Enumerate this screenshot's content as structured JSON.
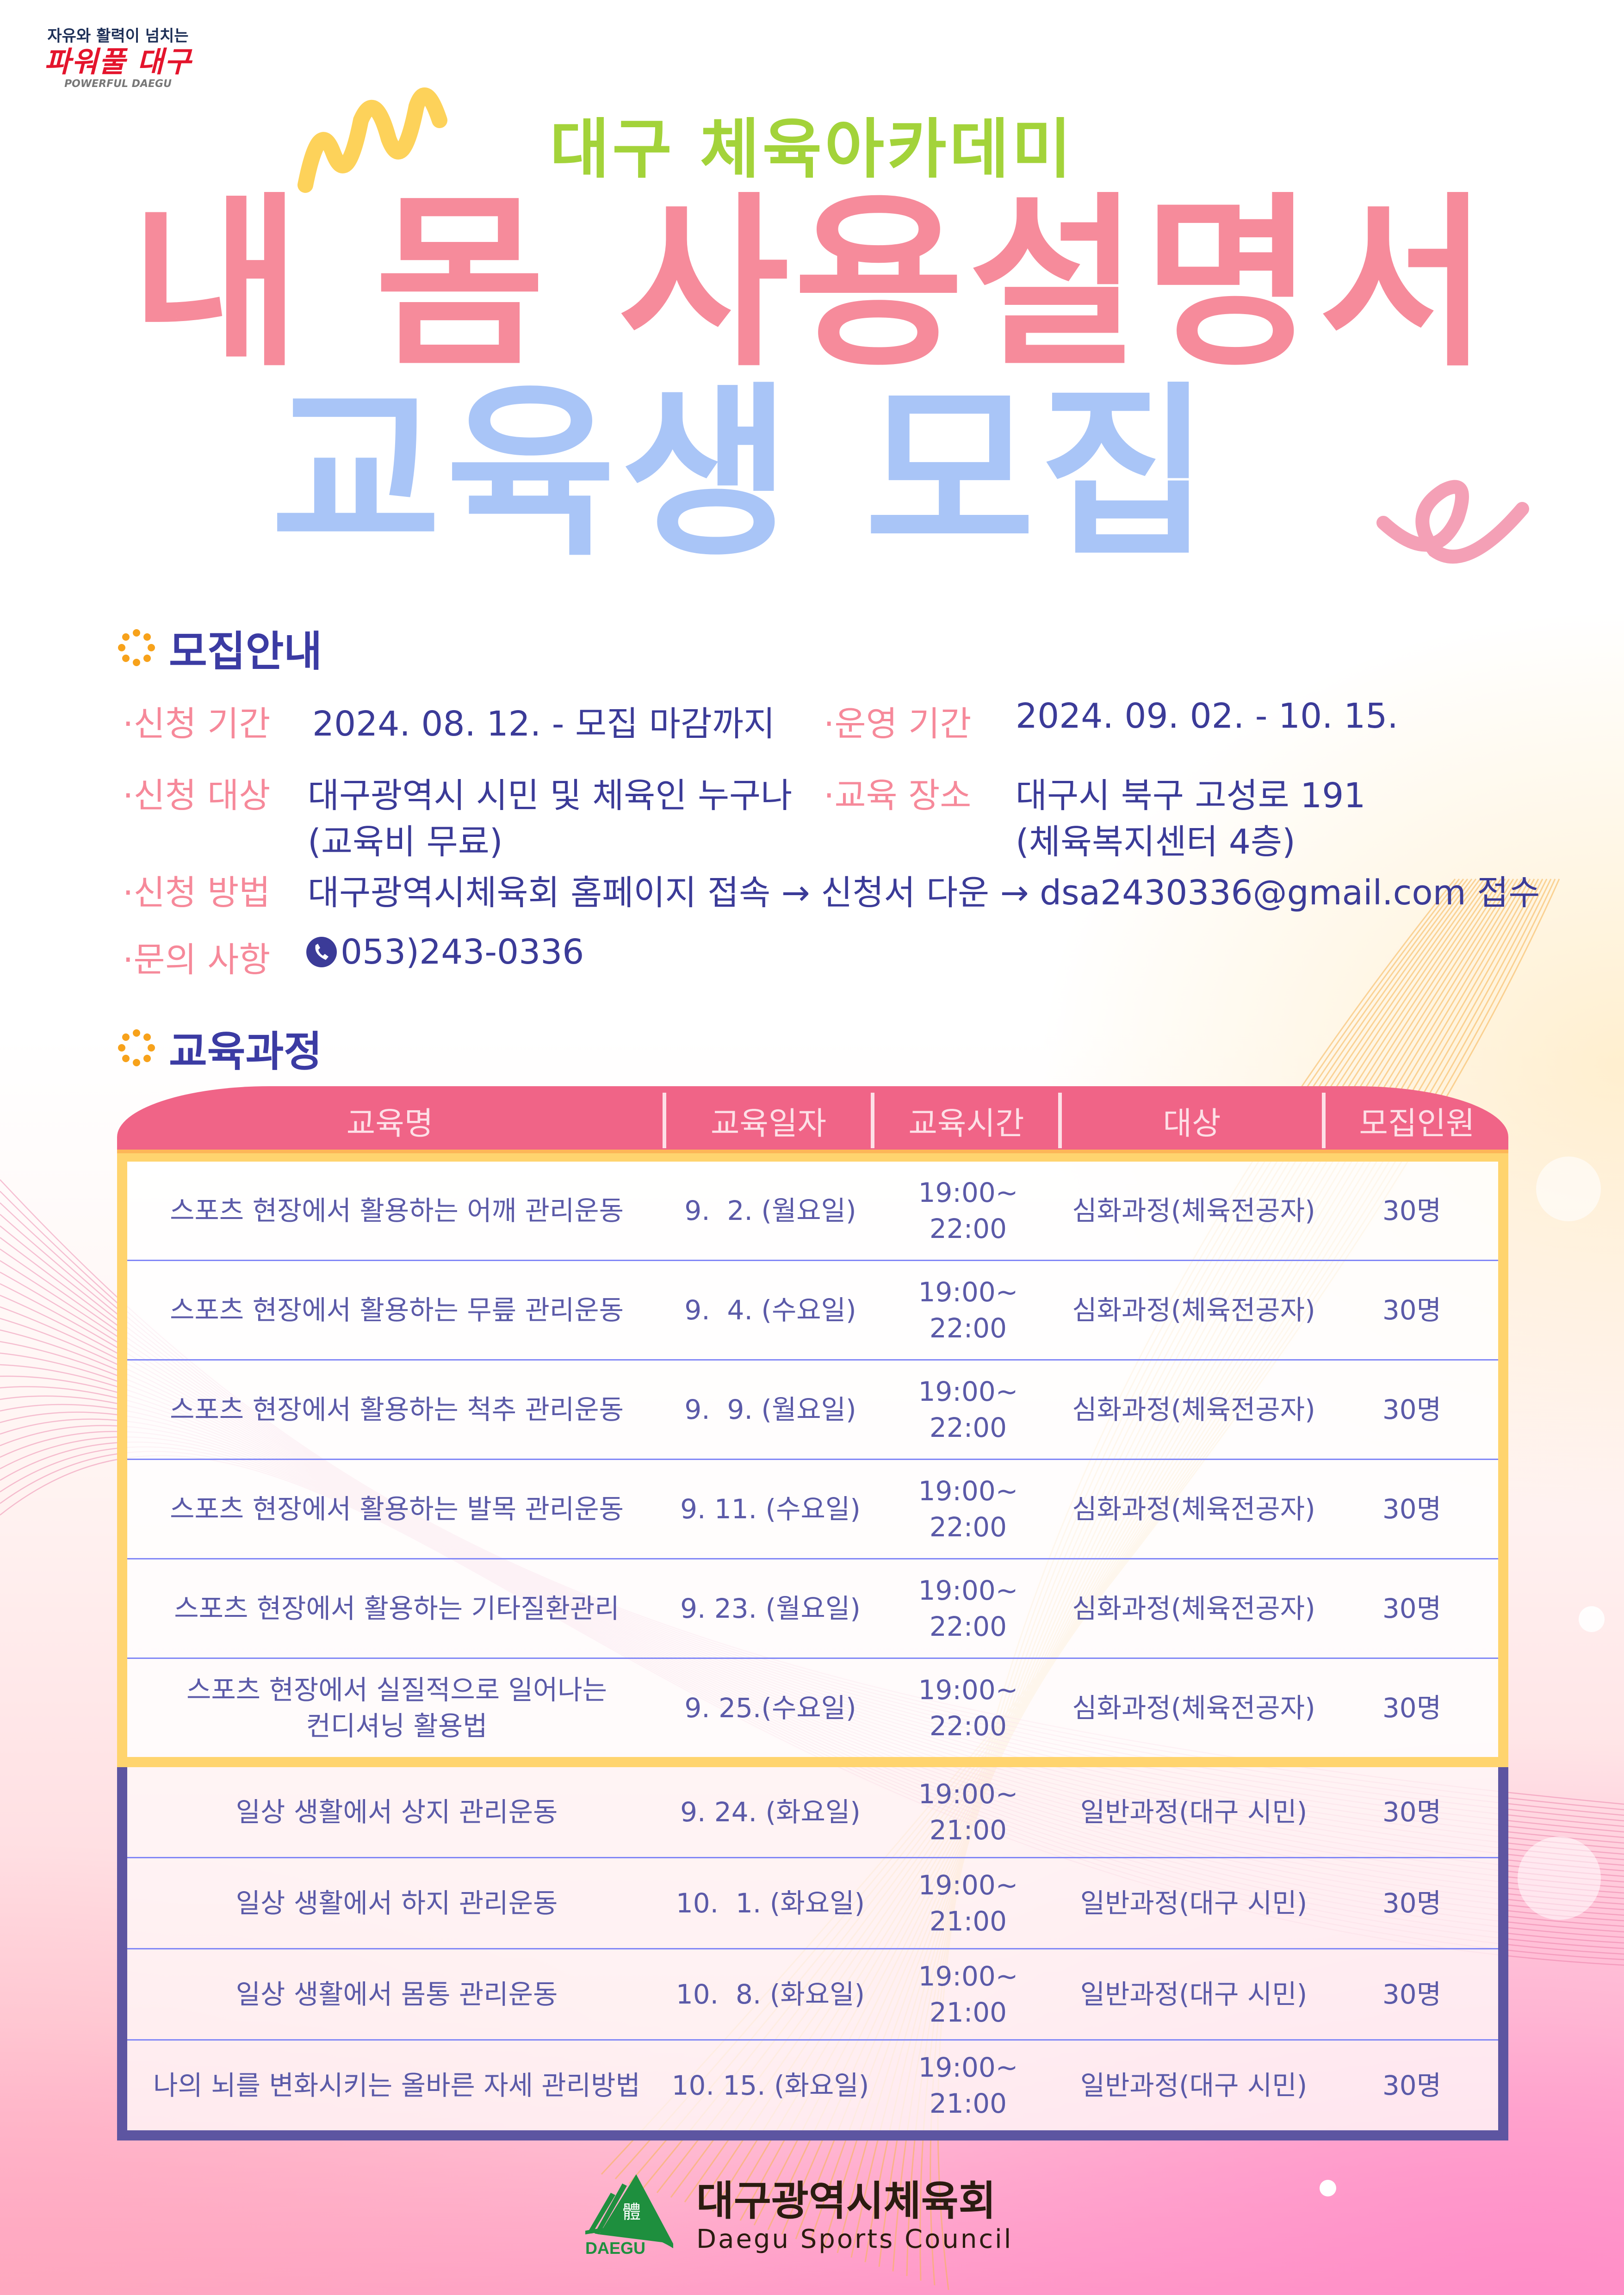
{
  "logo_top": {
    "line1": "자유와 활력이 넘치는",
    "line2": "파워풀 대구",
    "line3": "POWERFUL DAEGU"
  },
  "header": {
    "subtitle": "대구 체육아카데미",
    "title_line1": "내 몸 사용설명서",
    "title_line2": "교육생 모집"
  },
  "recruit": {
    "heading": "모집안내",
    "items": [
      {
        "label": "·신청 기간",
        "value": "2024. 08. 12. - 모집 마감까지"
      },
      {
        "label": "·운영 기간",
        "value": "2024. 09. 02. - 10. 15."
      },
      {
        "label": "·신청 대상",
        "value": "대구광역시 시민 및 체육인 누구나",
        "value2": "(교육비 무료)"
      },
      {
        "label": "·교육 장소",
        "value": "대구시 북구 고성로 191",
        "value2": "(체육복지센터 4층)"
      },
      {
        "label": "·신청 방법",
        "value": "대구광역시체육회 홈페이지 접속 → 신청서 다운 → dsa2430336@gmail.com 접수"
      },
      {
        "label": "·문의 사항",
        "value": "053)243-0336",
        "icon": "phone-icon"
      }
    ]
  },
  "courses": {
    "heading": "교육과정",
    "columns": [
      "교육명",
      "교육일자",
      "교육시간",
      "대상",
      "모집인원"
    ],
    "advanced_rows": [
      {
        "name": "스포츠 현장에서 활용하는 어깨 관리운동",
        "date": "9.  2. (월요일)",
        "time1": "19:00~",
        "time2": "22:00",
        "target": "심화과정(체육전공자)",
        "count": "30명"
      },
      {
        "name": "스포츠 현장에서 활용하는 무릎 관리운동",
        "date": "9.  4. (수요일)",
        "time1": "19:00~",
        "time2": "22:00",
        "target": "심화과정(체육전공자)",
        "count": "30명"
      },
      {
        "name": "스포츠 현장에서 활용하는 척추 관리운동",
        "date": "9.  9. (월요일)",
        "time1": "19:00~",
        "time2": "22:00",
        "target": "심화과정(체육전공자)",
        "count": "30명"
      },
      {
        "name": "스포츠 현장에서 활용하는 발목 관리운동",
        "date": "9. 11. (수요일)",
        "time1": "19:00~",
        "time2": "22:00",
        "target": "심화과정(체육전공자)",
        "count": "30명"
      },
      {
        "name": "스포츠 현장에서 활용하는 기타질환관리",
        "date": "9. 23. (월요일)",
        "time1": "19:00~",
        "time2": "22:00",
        "target": "심화과정(체육전공자)",
        "count": "30명"
      },
      {
        "name": "스포츠 현장에서 실질적으로 일어나는",
        "name2": "컨디셔닝 활용법",
        "date": "9. 25.(수요일)",
        "time1": "19:00~",
        "time2": "22:00",
        "target": "심화과정(체육전공자)",
        "count": "30명"
      }
    ],
    "general_rows": [
      {
        "name": "일상 생활에서 상지 관리운동",
        "date": "9. 24. (화요일)",
        "time1": "19:00~",
        "time2": "21:00",
        "target": "일반과정(대구 시민)",
        "count": "30명"
      },
      {
        "name": "일상 생활에서 하지 관리운동",
        "date": "10.  1. (화요일)",
        "time1": "19:00~",
        "time2": "21:00",
        "target": "일반과정(대구 시민)",
        "count": "30명"
      },
      {
        "name": "일상 생활에서 몸통 관리운동",
        "date": "10.  8. (화요일)",
        "time1": "19:00~",
        "time2": "21:00",
        "target": "일반과정(대구 시민)",
        "count": "30명"
      },
      {
        "name": "나의 뇌를 변화시키는 올바른 자세 관리방법",
        "date": "10. 15. (화요일)",
        "time1": "19:00~",
        "time2": "21:00",
        "target": "일반과정(대구 시민)",
        "count": "30명"
      }
    ]
  },
  "footer": {
    "logo_mark_text": "DAEGU",
    "logo_hanja": "體",
    "org_kr": "대구광역시체육회",
    "org_en": "Daegu Sports Council"
  },
  "colors": {
    "pink_title": "#f68b9b",
    "blue_title": "#a9c5f7",
    "green_subtitle": "#a3d33a",
    "navy_text": "#3b3b98",
    "header_pink": "#f06487",
    "advanced_border": "#ffd46e",
    "general_border": "#5d55a1",
    "logo_green": "#1e8f3e"
  }
}
